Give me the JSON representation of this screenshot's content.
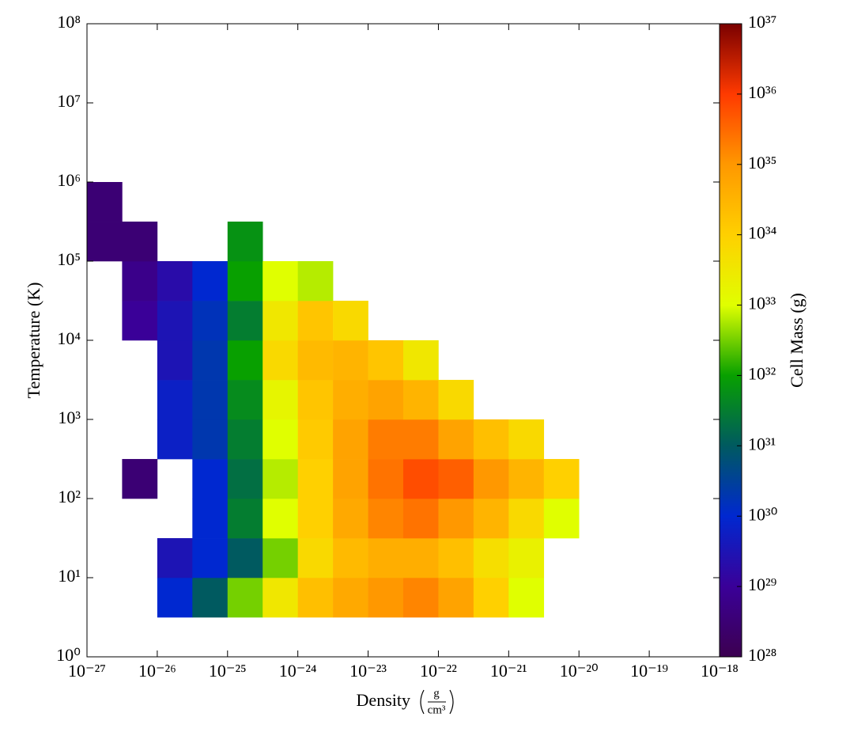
{
  "chart_data": {
    "type": "heatmap",
    "xlabel": "Density",
    "xlabel_unit_num": "g",
    "xlabel_unit_den": "cm³",
    "ylabel": "Temperature  (K)",
    "colorbar_label": "Cell Mass  (g)",
    "xscale": "log",
    "yscale": "log",
    "colorscale": "log",
    "xlim": [
      1e-27,
      1e-18
    ],
    "ylim": [
      1,
      100000000.0
    ],
    "clim": [
      1e+28,
      1e+37
    ],
    "xticks": [
      {
        "value": 1e-27,
        "label": "10⁻²⁷"
      },
      {
        "value": 1e-26,
        "label": "10⁻²⁶"
      },
      {
        "value": 1e-25,
        "label": "10⁻²⁵"
      },
      {
        "value": 1e-24,
        "label": "10⁻²⁴"
      },
      {
        "value": 1e-23,
        "label": "10⁻²³"
      },
      {
        "value": 1e-22,
        "label": "10⁻²²"
      },
      {
        "value": 1e-21,
        "label": "10⁻²¹"
      },
      {
        "value": 1e-20,
        "label": "10⁻²⁰"
      },
      {
        "value": 1e-19,
        "label": "10⁻¹⁹"
      },
      {
        "value": 1e-18,
        "label": "10⁻¹⁸"
      }
    ],
    "yticks": [
      {
        "value": 1,
        "label": "10⁰"
      },
      {
        "value": 10,
        "label": "10¹"
      },
      {
        "value": 100,
        "label": "10²"
      },
      {
        "value": 1000,
        "label": "10³"
      },
      {
        "value": 10000,
        "label": "10⁴"
      },
      {
        "value": 100000,
        "label": "10⁵"
      },
      {
        "value": 1000000,
        "label": "10⁶"
      },
      {
        "value": 10000000,
        "label": "10⁷"
      },
      {
        "value": 100000000,
        "label": "10⁸"
      }
    ],
    "cticks": [
      {
        "value": 1e+28,
        "label": "10²⁸"
      },
      {
        "value": 1e+29,
        "label": "10²⁹"
      },
      {
        "value": 1e+30,
        "label": "10³⁰"
      },
      {
        "value": 1e+31,
        "label": "10³¹"
      },
      {
        "value": 1e+32,
        "label": "10³²"
      },
      {
        "value": 1e+33,
        "label": "10³³"
      },
      {
        "value": 1e+34,
        "label": "10³⁴"
      },
      {
        "value": 1e+35,
        "label": "10³⁵"
      },
      {
        "value": 1e+36,
        "label": "10³⁶"
      },
      {
        "value": 1e+37,
        "label": "10³⁷"
      }
    ],
    "colormap": [
      "#3c0050",
      "#3a0098",
      "#0028d0",
      "#005a60",
      "#08a000",
      "#e0ff00",
      "#ffd000",
      "#ff9800",
      "#ff3a00",
      "#7a0000"
    ],
    "x_bins": [
      1e-27,
      3.16e-27,
      1e-26,
      3.16e-26,
      1e-25,
      3.16e-25,
      1e-24,
      3.16e-24,
      1e-23,
      3.16e-23,
      1e-22,
      3.16e-22,
      1e-21,
      3.16e-21,
      1e-20
    ],
    "y_bins": [
      1,
      3.16,
      10,
      31.6,
      100,
      316,
      1000,
      3160,
      10000,
      31600,
      100000,
      316000,
      1000000
    ],
    "z": [
      [
        null,
        null,
        null,
        null,
        null,
        null,
        null,
        null,
        null,
        null,
        null,
        null,
        null,
        null
      ],
      [
        null,
        null,
        1e+30,
        1e+31,
        3.2e+32,
        3.2e+33,
        2e+34,
        5e+34,
        1e+35,
        1.6e+35,
        6.3e+34,
        1e+34,
        1e+33,
        null
      ],
      [
        null,
        null,
        3.2e+29,
        1e+30,
        1e+31,
        3.2e+32,
        6.3e+33,
        2.5e+34,
        4e+34,
        4e+34,
        2e+34,
        5e+33,
        2e+33,
        null
      ],
      [
        null,
        null,
        null,
        1e+30,
        3.2e+31,
        1e+33,
        1e+34,
        5e+34,
        1.6e+35,
        2.5e+35,
        1e+35,
        3.2e+34,
        6.3e+33,
        1e+33
      ],
      [
        null,
        3.2e+28,
        null,
        1e+30,
        2e+31,
        6.3e+32,
        1e+34,
        6.3e+34,
        2.5e+35,
        6.3e+35,
        4e+35,
        1e+35,
        3.2e+34,
        1e+34
      ],
      [
        null,
        null,
        6.3e+29,
        2e+30,
        3.2e+31,
        1e+33,
        1.3e+34,
        6.3e+34,
        2e+35,
        2e+35,
        6.3e+34,
        2e+34,
        6.3e+33,
        null
      ],
      [
        null,
        null,
        6.3e+29,
        2e+30,
        5e+31,
        1.6e+33,
        1.6e+34,
        4e+34,
        6.3e+34,
        3.2e+34,
        6.3e+33,
        null,
        null,
        null
      ],
      [
        null,
        null,
        3.2e+29,
        2e+30,
        1e+32,
        6.3e+33,
        2.5e+34,
        3.2e+34,
        1.6e+34,
        3.2e+33,
        null,
        null,
        null,
        null
      ],
      [
        null,
        1e+29,
        3.2e+29,
        1.6e+30,
        3.2e+31,
        3.2e+33,
        1.6e+34,
        6.3e+33,
        null,
        null,
        null,
        null,
        null,
        null
      ],
      [
        null,
        6.3e+28,
        2e+29,
        1e+30,
        1e+32,
        1e+33,
        6.3e+32,
        null,
        null,
        null,
        null,
        null,
        null,
        null
      ],
      [
        3.2e+28,
        3.2e+28,
        null,
        null,
        6.3e+31,
        null,
        null,
        null,
        null,
        null,
        null,
        null,
        null,
        null
      ],
      [
        3.2e+28,
        null,
        null,
        null,
        null,
        null,
        null,
        null,
        null,
        null,
        null,
        null,
        null,
        null
      ]
    ]
  }
}
